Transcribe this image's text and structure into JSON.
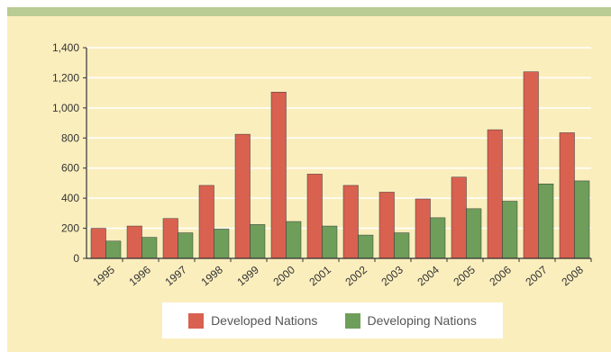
{
  "chart_data": {
    "type": "bar",
    "title": "",
    "xlabel": "",
    "ylabel": "",
    "categories": [
      "1995",
      "1996",
      "1997",
      "1998",
      "1999",
      "2000",
      "2001",
      "2002",
      "2003",
      "2004",
      "2005",
      "2006",
      "2007",
      "2008"
    ],
    "series": [
      {
        "name": "Developed Nations",
        "color": "#d9614f",
        "values": [
          200,
          215,
          265,
          485,
          825,
          1105,
          560,
          485,
          440,
          395,
          540,
          855,
          1240,
          835
        ]
      },
      {
        "name": "Developing Nations",
        "color": "#6e9e5a",
        "values": [
          115,
          140,
          170,
          195,
          225,
          245,
          215,
          155,
          170,
          270,
          330,
          380,
          495,
          515
        ]
      }
    ],
    "ylim": [
      0,
      1400
    ],
    "yticks": [
      0,
      200,
      400,
      600,
      800,
      1000,
      1200,
      1400
    ],
    "ytick_labels": [
      "0",
      "200",
      "400",
      "600",
      "800",
      "1,000",
      "1,200",
      "1,400"
    ],
    "grid": true,
    "legend_position": "bottom"
  }
}
